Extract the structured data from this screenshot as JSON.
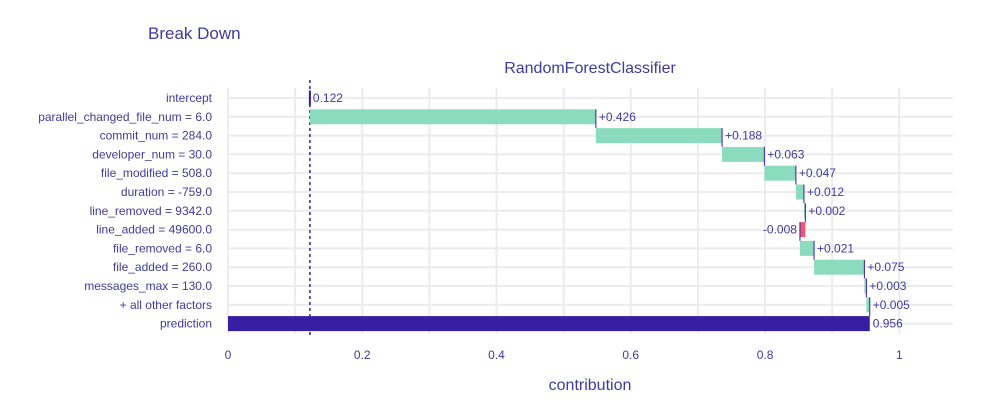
{
  "chart_data": {
    "type": "bar",
    "title": "Break Down",
    "subtitle": "RandomForestClassifier",
    "xlabel": "contribution",
    "xlim": [
      0,
      1.08
    ],
    "xticks": [
      0,
      0.2,
      0.4,
      0.6,
      0.8,
      1
    ],
    "tick_labels": [
      "0",
      "0.2",
      "0.4",
      "0.6",
      "0.8",
      "1"
    ],
    "intercept_value": 0.122,
    "grid": true,
    "colors": {
      "positive": "#8bdcbe",
      "negative": "#f05a71",
      "prediction": "#371ea3",
      "connector": "#371ea3",
      "text": "#3f3a9e"
    },
    "rows": [
      {
        "label": "intercept",
        "start": 0.122,
        "end": 0.122,
        "value_label": "0.122",
        "kind": "intercept"
      },
      {
        "label": "parallel_changed_file_num = 6.0",
        "start": 0.122,
        "end": 0.548,
        "value_label": "+0.426",
        "kind": "positive"
      },
      {
        "label": "commit_num = 284.0",
        "start": 0.548,
        "end": 0.736,
        "value_label": "+0.188",
        "kind": "positive"
      },
      {
        "label": "developer_num = 30.0",
        "start": 0.736,
        "end": 0.799,
        "value_label": "+0.063",
        "kind": "positive"
      },
      {
        "label": "file_modified = 508.0",
        "start": 0.799,
        "end": 0.846,
        "value_label": "+0.047",
        "kind": "positive"
      },
      {
        "label": "duration = -759.0",
        "start": 0.846,
        "end": 0.858,
        "value_label": "+0.012",
        "kind": "positive"
      },
      {
        "label": "line_removed = 9342.0",
        "start": 0.858,
        "end": 0.86,
        "value_label": "+0.002",
        "kind": "positive"
      },
      {
        "label": "line_added = 49600.0",
        "start": 0.86,
        "end": 0.852,
        "value_label": "-0.008",
        "kind": "negative"
      },
      {
        "label": "file_removed = 6.0",
        "start": 0.852,
        "end": 0.873,
        "value_label": "+0.021",
        "kind": "positive"
      },
      {
        "label": "file_added = 260.0",
        "start": 0.873,
        "end": 0.948,
        "value_label": "+0.075",
        "kind": "positive"
      },
      {
        "label": "messages_max = 130.0",
        "start": 0.948,
        "end": 0.951,
        "value_label": "+0.003",
        "kind": "positive"
      },
      {
        "label": "+ all other factors",
        "start": 0.951,
        "end": 0.956,
        "value_label": "+0.005",
        "kind": "positive"
      },
      {
        "label": "prediction",
        "start": 0,
        "end": 0.956,
        "value_label": "0.956",
        "kind": "prediction"
      }
    ]
  }
}
